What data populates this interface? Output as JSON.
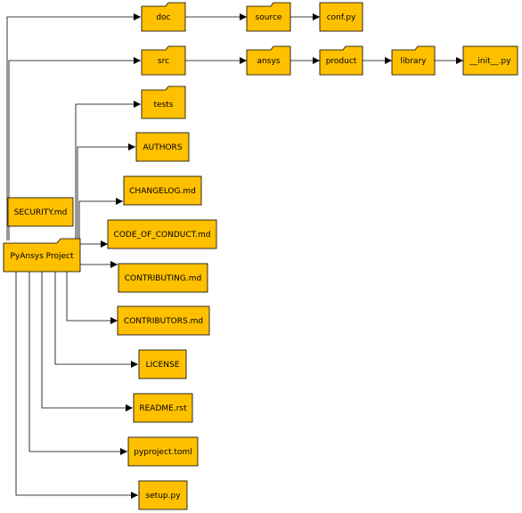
{
  "diagram": {
    "root": "PyAnsys Project",
    "nodes": {
      "doc": "doc",
      "source": "source",
      "conf": "conf.py",
      "src": "src",
      "ansys": "ansys",
      "product": "product",
      "library": "library",
      "init": "__init__.py",
      "tests": "tests",
      "authors": "AUTHORS",
      "changelog": "CHANGELOG.md",
      "coc": "CODE_OF_CONDUCT.md",
      "security": "SECURITY.md",
      "root": "PyAnsys Project",
      "contributing": "CONTRIBUTING.md",
      "contributors": "CONTRIBUTORS.md",
      "license": "LICENSE",
      "readme": "README.rst",
      "pyproject": "pyproject.toml",
      "setup": "setup.py"
    },
    "colors": {
      "node_fill": "#FFC000",
      "stroke": "#000000",
      "text": "#000000",
      "background": "#FFFFFF"
    }
  }
}
